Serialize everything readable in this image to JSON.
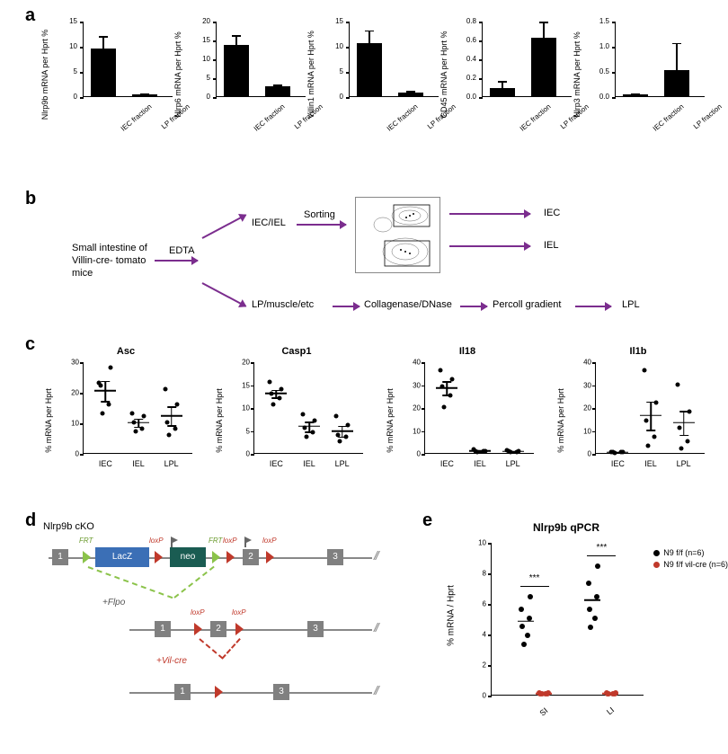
{
  "panel_labels": {
    "a": "a",
    "b": "b",
    "c": "c",
    "d": "d",
    "e": "e"
  },
  "panelA": {
    "y_label_suffix": " mRNA per Hprt %",
    "x_categories": [
      "IEC fraction",
      "LP fraction"
    ],
    "colors": {
      "bar": "#000000",
      "axis": "#000000"
    },
    "charts": [
      {
        "gene": "Nlrp9b",
        "ymax": 15,
        "ytick_step": 5,
        "values": [
          9.4,
          0.4
        ],
        "errors": [
          2.5,
          0.2
        ]
      },
      {
        "gene": "Nlrp6",
        "ymax": 20,
        "ytick_step": 5,
        "values": [
          13.6,
          2.7
        ],
        "errors": [
          2.5,
          0.3
        ]
      },
      {
        "gene": "Villin1",
        "ymax": 15,
        "ytick_step": 5,
        "values": [
          10.6,
          0.7
        ],
        "errors": [
          2.5,
          0.3
        ]
      },
      {
        "gene": "CD45",
        "ymax": 0.8,
        "ytick_step": 0.2,
        "values": [
          0.09,
          0.62
        ],
        "errors": [
          0.07,
          0.17
        ]
      },
      {
        "gene": "Nlrp3",
        "ymax": 1.5,
        "ytick_step": 0.5,
        "values": [
          0.03,
          0.52
        ],
        "errors": [
          0.02,
          0.54
        ]
      }
    ]
  },
  "panelB": {
    "texts": {
      "source": "Small intestine\nof Villin-cre-\ntomato mice",
      "edta": "EDTA",
      "split_top": "IEC/IEL",
      "split_bot": "LP/muscle/etc",
      "sorting": "Sorting",
      "collagenase": "Collagenase/DNase",
      "percoll": "Percoll gradient",
      "out_iec": "IEC",
      "out_iel": "IEL",
      "out_lpl": "LPL"
    },
    "arrow_color": "#7b2d8e"
  },
  "panelC": {
    "y_label": "% mRNA per Hprt",
    "x_categories": [
      "IEC",
      "IEL",
      "LPL"
    ],
    "charts": [
      {
        "title": "Asc",
        "ymax": 30,
        "ytick_step": 10,
        "groups": [
          {
            "points": [
              13,
              16,
              22,
              28,
              23
            ],
            "mean": 20.4,
            "sem": 3.5
          },
          {
            "points": [
              7,
              8,
              10,
              12,
              13
            ],
            "mean": 10.0,
            "sem": 1.5
          },
          {
            "points": [
              6,
              8,
              10,
              16,
              21
            ],
            "mean": 12.2,
            "sem": 3.3
          }
        ]
      },
      {
        "title": "Casp1",
        "ymax": 20,
        "ytick_step": 5,
        "groups": [
          {
            "points": [
              10.5,
              12,
              13,
              14,
              15.5
            ],
            "mean": 13.0,
            "sem": 1.0
          },
          {
            "points": [
              3.5,
              4.5,
              5.5,
              7,
              8.5
            ],
            "mean": 5.8,
            "sem": 1.2
          },
          {
            "points": [
              2.5,
              3.5,
              4,
              6,
              8
            ],
            "mean": 4.8,
            "sem": 1.3
          }
        ]
      },
      {
        "title": "Il18",
        "ymax": 40,
        "ytick_step": 10,
        "groups": [
          {
            "points": [
              20,
              25,
              29,
              32,
              36
            ],
            "mean": 28.4,
            "sem": 3.2
          },
          {
            "points": [
              0.5,
              0.6,
              0.7,
              0.8,
              1.5
            ],
            "mean": 0.8,
            "sem": 0.3
          },
          {
            "points": [
              0.3,
              0.5,
              0.6,
              0.7,
              1.2
            ],
            "mean": 0.7,
            "sem": 0.2
          }
        ]
      },
      {
        "title": "Il1b",
        "ymax": 40,
        "ytick_step": 10,
        "groups": [
          {
            "points": [
              0.2,
              0.3,
              0.3,
              0.4,
              0.5
            ],
            "mean": 0.3,
            "sem": 0.1
          },
          {
            "points": [
              3,
              7,
              14,
              22,
              36
            ],
            "mean": 16.4,
            "sem": 6.5
          },
          {
            "points": [
              2,
              5,
              11,
              18,
              30
            ],
            "mean": 13.2,
            "sem": 5.5
          }
        ]
      }
    ]
  },
  "panelD": {
    "title": "Nlrp9b cKO",
    "labels": {
      "frt": "FRT",
      "loxp": "loxP",
      "lacz": "LacZ",
      "neo": "neo",
      "flpo": "+Flpo",
      "vilcre": "+Vil-cre"
    },
    "exons": [
      "1",
      "2",
      "3"
    ],
    "colors": {
      "exon": "#808080",
      "lacz": "#3b6fb6",
      "neo": "#1a5c52",
      "frt": "#8bc34a",
      "loxp": "#c0392b",
      "line": "#888888",
      "flpo_dash": "#8bc34a",
      "cre_dash": "#c0392b"
    }
  },
  "panelE": {
    "title": "Nlrp9b qPCR",
    "y_label": "% mRNA / Hprt",
    "ymax": 10,
    "ytick_step": 2,
    "x_categories": [
      "SI",
      "LI"
    ],
    "series": [
      {
        "name": "N9 f/f (n=6)",
        "color": "#000000",
        "groups": [
          {
            "points": [
              3.3,
              3.9,
              4.5,
              5.0,
              5.6,
              6.4
            ],
            "mean": 4.8
          },
          {
            "points": [
              4.4,
              5.0,
              5.6,
              6.4,
              7.3,
              8.4
            ],
            "mean": 6.2
          }
        ]
      },
      {
        "name": "N9 f/f vil-cre (n=6)",
        "color": "#c0392b",
        "groups": [
          {
            "points": [
              0.05,
              0.06,
              0.07,
              0.08,
              0.09,
              0.1
            ],
            "mean": 0.08
          },
          {
            "points": [
              0.05,
              0.06,
              0.07,
              0.08,
              0.09,
              0.1
            ],
            "mean": 0.08
          }
        ]
      }
    ],
    "significance": "***"
  }
}
